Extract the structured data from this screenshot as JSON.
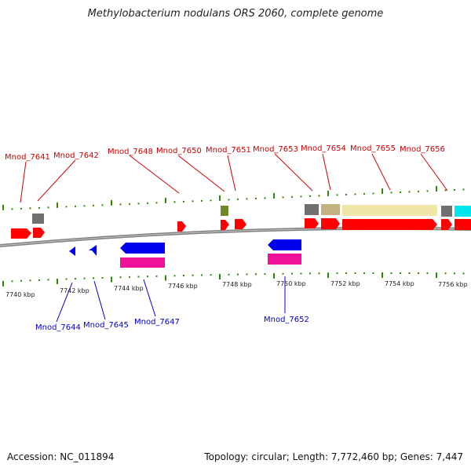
{
  "title": "Methylobacterium nodulans ORS 2060, complete genome",
  "footer": {
    "accession": "Accession: NC_011894",
    "topology": "Topology: circular; Length: 7,772,460 bp; Genes: 7,447"
  },
  "colors": {
    "forward_gene": "#ff0000",
    "reverse_gene": "#0000ee",
    "rrna_pink": "#ee1199",
    "pseudo_gray": "#707070",
    "olive": "#6e8b2a",
    "tan": "#c2b280",
    "pale_yellow": "#f0e6a8",
    "cyan": "#00e5ee",
    "tick_green": "#2e8b00",
    "backbone": "#808080",
    "label_red": "#cc0000",
    "label_blue": "#0000cc"
  },
  "kbp_labels": [
    "7740 kbp",
    "7742 kbp",
    "7744 kbp",
    "7746 kbp",
    "7748 kbp",
    "7750 kbp",
    "7752 kbp",
    "7754 kbp",
    "7756 kbp"
  ],
  "forward_labels": [
    "Mnod_7641",
    "Mnod_7642",
    "Mnod_7648",
    "Mnod_7650",
    "Mnod_7651",
    "Mnod_7653",
    "Mnod_7654",
    "Mnod_7655",
    "Mnod_7656"
  ],
  "reverse_labels": [
    "Mnod_7644",
    "Mnod_7645",
    "Mnod_7647",
    "Mnod_7652"
  ]
}
